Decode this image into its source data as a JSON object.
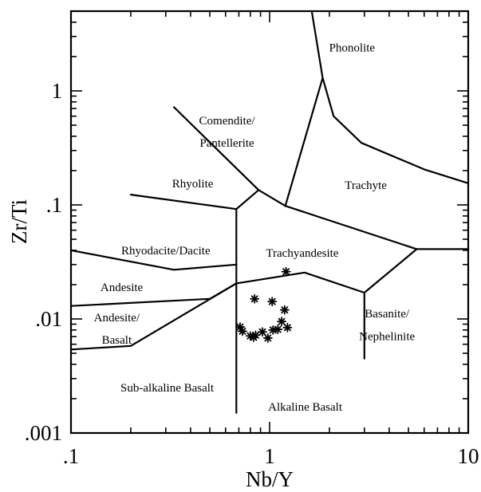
{
  "chart_data": {
    "type": "scatter",
    "title": "",
    "xlabel": "Nb/Y",
    "ylabel": "Zr/Ti",
    "x_scale": "log",
    "y_scale": "log",
    "xlim": [
      0.1,
      10
    ],
    "ylim": [
      0.001,
      5
    ],
    "x_tick_labels": [
      {
        "value": 0.1,
        "label": ".1"
      },
      {
        "value": 1,
        "label": "1"
      },
      {
        "value": 10,
        "label": "10"
      }
    ],
    "y_tick_labels": [
      {
        "value": 0.001,
        "label": ".001"
      },
      {
        "value": 0.01,
        "label": ".01"
      },
      {
        "value": 0.1,
        "label": ".1"
      },
      {
        "value": 1,
        "label": "1"
      }
    ],
    "grid": false,
    "legend": "none",
    "marker": "asterisk",
    "points": [
      {
        "x": 0.71,
        "y": 0.0085
      },
      {
        "x": 0.73,
        "y": 0.0078
      },
      {
        "x": 0.8,
        "y": 0.0071
      },
      {
        "x": 0.83,
        "y": 0.0069
      },
      {
        "x": 0.85,
        "y": 0.0072
      },
      {
        "x": 0.92,
        "y": 0.0077
      },
      {
        "x": 0.98,
        "y": 0.0068
      },
      {
        "x": 1.04,
        "y": 0.008
      },
      {
        "x": 1.1,
        "y": 0.0081
      },
      {
        "x": 1.15,
        "y": 0.0095
      },
      {
        "x": 1.23,
        "y": 0.0084
      },
      {
        "x": 1.19,
        "y": 0.012
      },
      {
        "x": 1.03,
        "y": 0.0142
      },
      {
        "x": 0.84,
        "y": 0.015
      },
      {
        "x": 1.21,
        "y": 0.026
      }
    ],
    "field_labels": [
      {
        "text": "Phonolite",
        "x": 2.6,
        "y": 2.4
      },
      {
        "text": "Comendite/",
        "x": 0.61,
        "y": 0.55
      },
      {
        "text": "Pantellerite",
        "x": 0.61,
        "y": 0.35
      },
      {
        "text": "Trachyte",
        "x": 3.05,
        "y": 0.15
      },
      {
        "text": "Rhyolite",
        "x": 0.41,
        "y": 0.155
      },
      {
        "text": "Rhyodacite/Dacite",
        "x": 0.3,
        "y": 0.04
      },
      {
        "text": "Trachyandesite",
        "x": 1.46,
        "y": 0.038
      },
      {
        "text": "Andesite",
        "x": 0.18,
        "y": 0.019
      },
      {
        "text": "Andesite/",
        "x": 0.17,
        "y": 0.0103
      },
      {
        "text": "Basalt",
        "x": 0.17,
        "y": 0.0066
      },
      {
        "text": "Basanite/",
        "x": 3.9,
        "y": 0.0112
      },
      {
        "text": "Nephelinite",
        "x": 3.9,
        "y": 0.0071
      },
      {
        "text": "Sub-alkaline Basalt",
        "x": 0.305,
        "y": 0.0025
      },
      {
        "text": "Alkaline Basalt",
        "x": 1.51,
        "y": 0.0017
      }
    ],
    "boundaries": [
      [
        [
          0.1,
          0.04
        ],
        [
          0.33,
          0.027
        ],
        [
          0.68,
          0.03
        ]
      ],
      [
        [
          0.68,
          0.03
        ],
        [
          0.68,
          0.0015
        ]
      ],
      [
        [
          0.68,
          0.03
        ],
        [
          0.68,
          0.092
        ]
      ],
      [
        [
          0.68,
          0.092
        ],
        [
          0.88,
          0.135
        ],
        [
          1.2,
          0.098
        ]
      ],
      [
        [
          0.2,
          0.123
        ],
        [
          0.68,
          0.092
        ]
      ],
      [
        [
          0.33,
          0.72
        ],
        [
          0.88,
          0.135
        ]
      ],
      [
        [
          1.2,
          0.098
        ],
        [
          1.85,
          1.3
        ]
      ],
      [
        [
          1.63,
          5
        ],
        [
          1.85,
          1.3
        ],
        [
          2.1,
          0.6
        ],
        [
          2.9,
          0.35
        ],
        [
          6,
          0.205
        ],
        [
          10,
          0.155
        ]
      ],
      [
        [
          1.2,
          0.098
        ],
        [
          5.5,
          0.041
        ],
        [
          10,
          0.041
        ]
      ],
      [
        [
          5.5,
          0.041
        ],
        [
          3,
          0.017
        ],
        [
          1.5,
          0.0255
        ],
        [
          0.68,
          0.0205
        ],
        [
          0.5,
          0.015
        ],
        [
          0.1,
          0.013
        ]
      ],
      [
        [
          0.68,
          0.0205
        ],
        [
          0.2,
          0.0058
        ],
        [
          0.1,
          0.0054
        ]
      ],
      [
        [
          3,
          0.017
        ],
        [
          3,
          0.0045
        ]
      ]
    ]
  }
}
